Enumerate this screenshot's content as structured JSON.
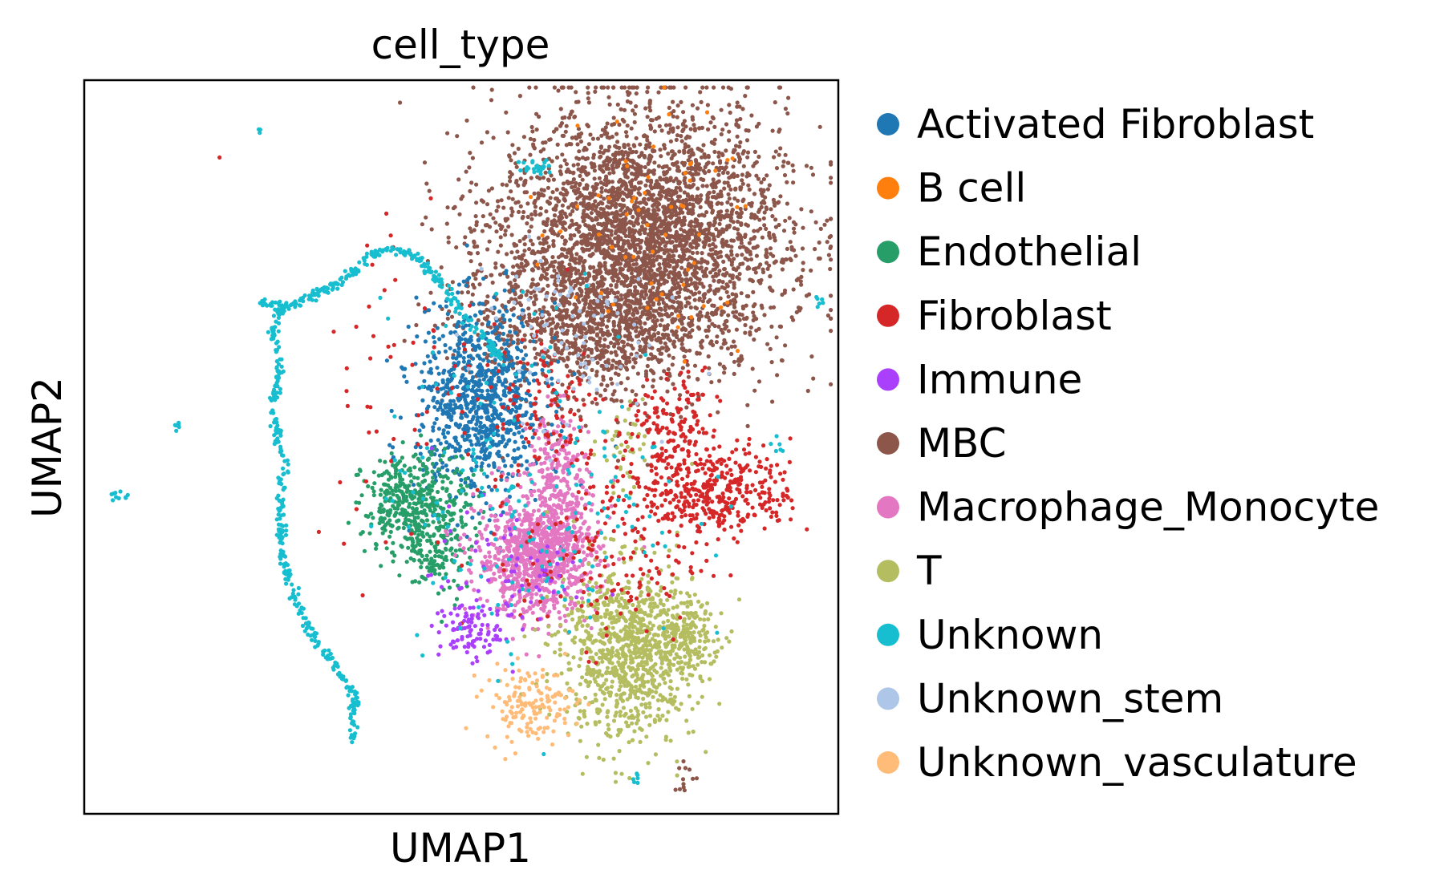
{
  "chart_data": {
    "type": "scatter",
    "title": "cell_type",
    "xlabel": "UMAP1",
    "ylabel": "UMAP2",
    "xlim": [
      0,
      100
    ],
    "ylim": [
      0,
      100
    ],
    "grid": false,
    "ticks": false,
    "legend_position": "right-outside",
    "series": [
      {
        "name": "Activated Fibroblast",
        "color": "#1f77b4",
        "clusters": [
          {
            "cx": 52.5,
            "cy": 56,
            "sx": 4.2,
            "sy": 6.5,
            "n": 900
          }
        ]
      },
      {
        "name": "B cell",
        "color": "#ff7f0e",
        "clusters": [
          {
            "cx": 74,
            "cy": 78,
            "sx": 8,
            "sy": 9,
            "n": 60
          }
        ]
      },
      {
        "name": "Endothelial",
        "color": "#279e68",
        "clusters": [
          {
            "cx": 44,
            "cy": 42,
            "sx": 3.5,
            "sy": 3.5,
            "n": 450
          },
          {
            "cx": 47,
            "cy": 35,
            "sx": 2,
            "sy": 3,
            "n": 90
          }
        ]
      },
      {
        "name": "Fibroblast",
        "color": "#d62728",
        "clusters": [
          {
            "cx": 84,
            "cy": 44,
            "sx": 5,
            "sy": 3,
            "n": 380
          },
          {
            "cx": 78,
            "cy": 52,
            "sx": 3,
            "sy": 4,
            "n": 160
          },
          {
            "cx": 70,
            "cy": 35,
            "sx": 6,
            "sy": 6,
            "n": 160
          },
          {
            "cx": 62,
            "cy": 55,
            "sx": 4,
            "sy": 6,
            "n": 110
          },
          {
            "cx": 45,
            "cy": 60,
            "sx": 8,
            "sy": 14,
            "n": 70
          }
        ]
      },
      {
        "name": "Immune",
        "color": "#aa40fc",
        "clusters": [
          {
            "cx": 51,
            "cy": 25,
            "sx": 2,
            "sy": 2,
            "n": 90
          },
          {
            "cx": 56,
            "cy": 32,
            "sx": 5,
            "sy": 5,
            "n": 70
          }
        ]
      },
      {
        "name": "MBC",
        "color": "#8c564b",
        "clusters": [
          {
            "cx": 74,
            "cy": 78,
            "sx": 9.5,
            "sy": 9,
            "n": 3600
          },
          {
            "cx": 67,
            "cy": 66,
            "sx": 6,
            "sy": 4,
            "n": 500
          },
          {
            "cx": 55,
            "cy": 70,
            "sx": 5,
            "sy": 7,
            "n": 120
          },
          {
            "cx": 80,
            "cy": 5,
            "sx": 1,
            "sy": 1,
            "n": 12
          }
        ]
      },
      {
        "name": "Macrophage_Monocyte",
        "color": "#e377c2",
        "clusters": [
          {
            "cx": 60,
            "cy": 35,
            "sx": 4,
            "sy": 4,
            "n": 900
          },
          {
            "cx": 63,
            "cy": 45,
            "sx": 2,
            "sy": 5,
            "n": 250
          }
        ]
      },
      {
        "name": "T",
        "color": "#b5bd61",
        "clusters": [
          {
            "cx": 72,
            "cy": 22,
            "sx": 4.5,
            "sy": 6,
            "n": 900
          },
          {
            "cx": 79,
            "cy": 24,
            "sx": 2.5,
            "sy": 2.5,
            "n": 200
          },
          {
            "cx": 71,
            "cy": 50,
            "sx": 1.5,
            "sy": 3,
            "n": 40
          }
        ]
      },
      {
        "name": "Unknown",
        "color": "#17becf",
        "path": [
          [
            23,
            70
          ],
          [
            26,
            69
          ],
          [
            29,
            70
          ],
          [
            33,
            72
          ],
          [
            36,
            74
          ],
          [
            38,
            76
          ],
          [
            41,
            77
          ],
          [
            44,
            76
          ],
          [
            47,
            73
          ],
          [
            49,
            70
          ],
          [
            51,
            67
          ],
          [
            54,
            64
          ],
          [
            55,
            62
          ]
        ],
        "path_n": 260,
        "path2": [
          [
            26,
            70
          ],
          [
            25,
            66
          ],
          [
            26,
            61
          ],
          [
            25,
            55
          ],
          [
            26.5,
            48
          ],
          [
            26,
            42
          ],
          [
            26,
            36
          ],
          [
            28,
            29
          ],
          [
            31,
            23
          ],
          [
            34,
            19
          ],
          [
            36,
            16
          ],
          [
            35.5,
            12
          ],
          [
            36,
            10
          ]
        ],
        "path2_n": 320,
        "clusters": [
          {
            "cx": 60,
            "cy": 45,
            "sx": 10,
            "sy": 12,
            "n": 180
          },
          {
            "cx": 60,
            "cy": 88,
            "sx": 1.2,
            "sy": 0.6,
            "n": 25
          },
          {
            "cx": 4.5,
            "cy": 43.5,
            "sx": 0.6,
            "sy": 0.6,
            "n": 10
          },
          {
            "cx": 12.5,
            "cy": 53,
            "sx": 0.4,
            "sy": 0.4,
            "n": 6
          },
          {
            "cx": 23,
            "cy": 93,
            "sx": 0.2,
            "sy": 0.2,
            "n": 3
          },
          {
            "cx": 97,
            "cy": 70,
            "sx": 0.4,
            "sy": 0.3,
            "n": 6
          },
          {
            "cx": 92,
            "cy": 50,
            "sx": 0.4,
            "sy": 0.6,
            "n": 6
          },
          {
            "cx": 73,
            "cy": 5,
            "sx": 0.3,
            "sy": 0.6,
            "n": 6
          }
        ]
      },
      {
        "name": "Unknown_stem",
        "color": "#aec7e8",
        "clusters": [
          {
            "cx": 63,
            "cy": 66,
            "sx": 6,
            "sy": 6,
            "n": 80
          }
        ]
      },
      {
        "name": "Unknown_vasculature",
        "color": "#ffbb78",
        "clusters": [
          {
            "cx": 59,
            "cy": 15,
            "sx": 3,
            "sy": 2.5,
            "n": 150
          }
        ]
      }
    ]
  }
}
